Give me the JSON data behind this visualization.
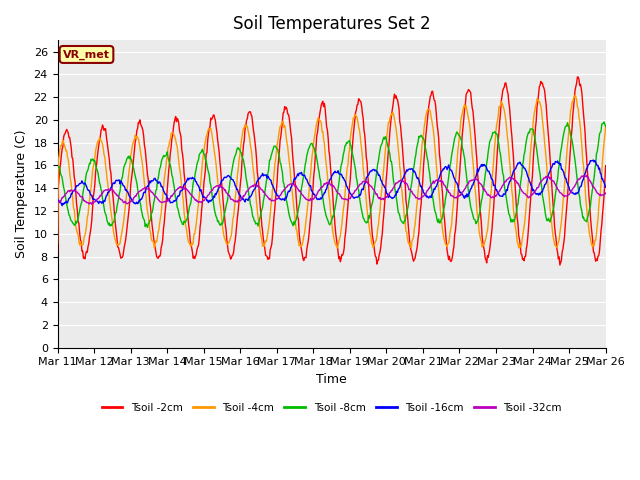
{
  "title": "Soil Temperatures Set 2",
  "xlabel": "Time",
  "ylabel": "Soil Temperature (C)",
  "ylim": [
    0,
    27
  ],
  "yticks": [
    0,
    2,
    4,
    6,
    8,
    10,
    12,
    14,
    16,
    18,
    20,
    22,
    24,
    26
  ],
  "x_labels": [
    "Mar 11",
    "Mar 12",
    "Mar 13",
    "Mar 14",
    "Mar 15",
    "Mar 16",
    "Mar 17",
    "Mar 18",
    "Mar 19",
    "Mar 20",
    "Mar 21",
    "Mar 22",
    "Mar 23",
    "Mar 24",
    "Mar 25",
    "Mar 26"
  ],
  "legend_labels": [
    "Tsoil -2cm",
    "Tsoil -4cm",
    "Tsoil -8cm",
    "Tsoil -16cm",
    "Tsoil -32cm"
  ],
  "legend_colors": [
    "#ff0000",
    "#ff9900",
    "#00bb00",
    "#0000ff",
    "#bb00bb"
  ],
  "annotation_text": "VR_met",
  "annotation_color": "#8B0000",
  "annotation_bg": "#ffffaa",
  "plot_bg": "#ebebeb",
  "grid_color": "#ffffff",
  "title_fontsize": 12,
  "axis_fontsize": 8,
  "label_fontsize": 9,
  "n_days": 15,
  "n_points_per_day": 48
}
